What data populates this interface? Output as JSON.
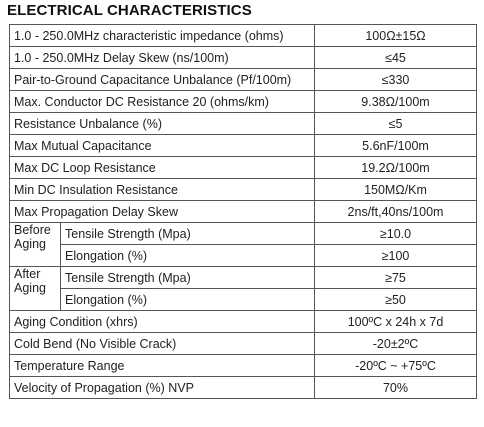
{
  "title": "ELECTRICAL CHARACTERISTICS",
  "rows": [
    {
      "label": "1.0 - 250.0MHz characteristic impedance (ohms)",
      "value": "100Ω±15Ω"
    },
    {
      "label": "1.0 - 250.0MHz Delay Skew (ns/100m)",
      "value": "≤45"
    },
    {
      "label": "Pair-to-Ground Capacitance Unbalance (Pf/100m)",
      "value": "≤330"
    },
    {
      "label": "Max. Conductor DC Resistance 20 (ohms/km)",
      "value": "9.38Ω/100m"
    },
    {
      "label": "Resistance Unbalance (%)",
      "value": "≤5"
    },
    {
      "label": "Max Mutual Capacitance",
      "value": "5.6nF/100m"
    },
    {
      "label": "Max DC Loop Resistance",
      "value": "19.2Ω/100m"
    },
    {
      "label": "Min DC Insulation Resistance",
      "value": "150MΩ/Km"
    },
    {
      "label": "Max Propagation Delay Skew",
      "value": "2ns/ft,40ns/100m"
    }
  ],
  "groups": [
    {
      "label_line1": "Before",
      "label_line2": "Aging",
      "items": [
        {
          "label": "Tensile Strength (Mpa)",
          "value": "≥10.0"
        },
        {
          "label": "Elongation (%)",
          "value": "≥100"
        }
      ]
    },
    {
      "label_line1": "After",
      "label_line2": "Aging",
      "items": [
        {
          "label": "Tensile Strength (Mpa)",
          "value": "≥75"
        },
        {
          "label": "Elongation (%)",
          "value": "≥50"
        }
      ]
    }
  ],
  "rows_after": [
    {
      "label": "Aging Condition (xhrs)",
      "value": "100ºC x 24h x 7d"
    },
    {
      "label": "Cold Bend (No Visible Crack)",
      "value": "-20±2ºC"
    },
    {
      "label": "Temperature Range",
      "value": "-20ºC ~ +75ºC"
    },
    {
      "label": "Velocity of Propagation (%) NVP",
      "value": "70%"
    }
  ]
}
